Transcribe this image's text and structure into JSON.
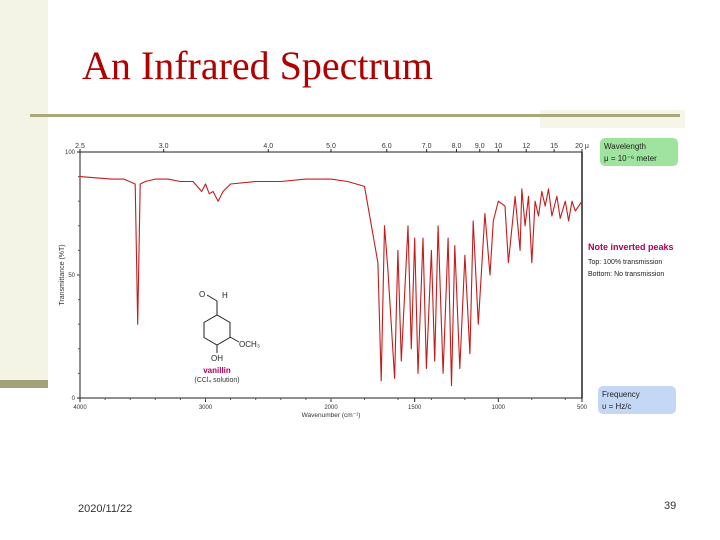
{
  "slide": {
    "title": "An Infrared Spectrum",
    "date": "2020/11/22",
    "page_number": "39"
  },
  "chart_data": {
    "type": "line",
    "title": "",
    "xlabel": "Wavenumber (cm⁻¹)",
    "ylabel": "Transmittance (%T)",
    "x_wavenumber_ticks": [
      "4000",
      "3000",
      "2000",
      "1500",
      "1000",
      "500"
    ],
    "x_wavelength_ticks": [
      "2.5",
      "3.0",
      "4.0",
      "5.0",
      "6.0",
      "7.0",
      "8.0",
      "9.0",
      "10",
      "12",
      "15",
      "20 μ"
    ],
    "y_tick_labels": [
      "100",
      "50",
      "0"
    ],
    "ylim": [
      0,
      100
    ],
    "series": [
      {
        "x": [
          4000,
          3750,
          3650,
          3560,
          3540,
          3520,
          3480,
          3400,
          3300,
          3200,
          3100,
          3030,
          3000,
          2970,
          2940,
          2900,
          2860,
          2800,
          2600,
          2400,
          2200,
          2000,
          1900,
          1800,
          1720,
          1700,
          1680,
          1660,
          1620,
          1600,
          1580,
          1540,
          1520,
          1500,
          1480,
          1450,
          1430,
          1400,
          1380,
          1360,
          1330,
          1300,
          1280,
          1260,
          1230,
          1200,
          1170,
          1150,
          1120,
          1080,
          1050,
          1030,
          1000,
          960,
          940,
          900,
          870,
          860,
          840,
          820,
          800,
          780,
          760,
          740,
          720,
          700,
          680,
          650,
          630,
          600,
          580,
          560,
          540,
          520,
          500
        ],
        "y": [
          90,
          89,
          89,
          87,
          30,
          87,
          88,
          89,
          89,
          88,
          88,
          84,
          87,
          83,
          84,
          80,
          84,
          87,
          88,
          88,
          89,
          89,
          88,
          86,
          55,
          7,
          70,
          52,
          8,
          60,
          15,
          70,
          20,
          65,
          10,
          65,
          12,
          60,
          15,
          70,
          10,
          65,
          5,
          62,
          12,
          58,
          18,
          72,
          30,
          75,
          50,
          72,
          80,
          78,
          55,
          82,
          60,
          85,
          70,
          82,
          55,
          80,
          74,
          84,
          78,
          85,
          74,
          82,
          73,
          80,
          72,
          80,
          76,
          78,
          80
        ]
      }
    ],
    "annotations": {
      "wavelength_box": [
        "Wavelength",
        "μ = 10⁻⁶ meter"
      ],
      "inverted_peaks_title": "Note inverted peaks",
      "inverted_top": "Top: 100% transmission",
      "inverted_bottom": "Bottom: No transmission",
      "frequency_box": [
        "Frequency",
        "υ = Hz/c"
      ]
    },
    "molecule": {
      "name": "vanillin",
      "solvent": "(CCl₄ solution)",
      "substituent_labels": [
        "O",
        "H",
        "OCH₃",
        "OH"
      ]
    },
    "colors": {
      "trace": "#c41c1c",
      "axis": "#222222",
      "green_box": "#9ee39e",
      "blue_box": "#c4d8f5",
      "note": "#b0005a"
    }
  }
}
